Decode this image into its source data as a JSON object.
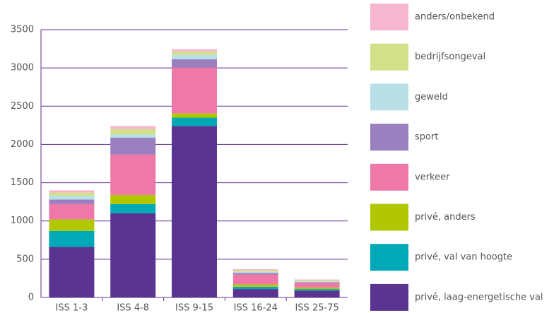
{
  "chart_data": {
    "type": "stacked_bar",
    "categories": [
      "ISS 1-3",
      "ISS 4-8",
      "ISS 9-15",
      "ISS 16-24",
      "ISS 25-75"
    ],
    "series": [
      {
        "name": "privé, laag-energetische val",
        "color": "#5b3390",
        "values": [
          660,
          1100,
          2240,
          110,
          90
        ]
      },
      {
        "name": "privé, val van hoogte",
        "color": "#00a9b5",
        "values": [
          210,
          120,
          110,
          30,
          20
        ]
      },
      {
        "name": "privé, anders",
        "color": "#b1c800",
        "values": [
          150,
          120,
          55,
          30,
          20
        ]
      },
      {
        "name": "verkeer",
        "color": "#ee79a8",
        "values": [
          200,
          530,
          600,
          130,
          60
        ]
      },
      {
        "name": "sport",
        "color": "#9b80bf",
        "values": [
          60,
          220,
          110,
          20,
          10
        ]
      },
      {
        "name": "geweld",
        "color": "#b8e0e6",
        "values": [
          50,
          40,
          55,
          15,
          10
        ]
      },
      {
        "name": "bedrijfsongeval",
        "color": "#d3e08a",
        "values": [
          40,
          70,
          45,
          20,
          15
        ]
      },
      {
        "name": "anders/onbekend",
        "color": "#f5b6d0",
        "values": [
          30,
          40,
          30,
          15,
          10
        ]
      }
    ],
    "ylim": [
      0,
      3500
    ],
    "yticks": [
      0,
      500,
      1000,
      1500,
      2000,
      2500,
      3000,
      3500
    ],
    "grid": true
  }
}
